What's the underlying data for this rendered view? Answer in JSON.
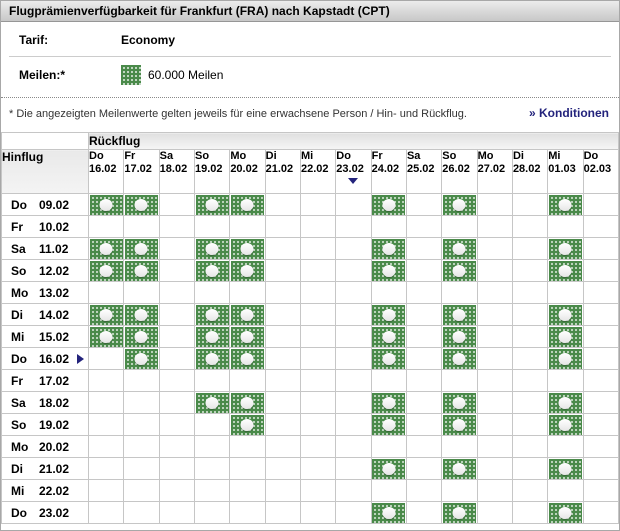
{
  "title": "Flugprämienverfügbarkeit für Frankfurt (FRA) nach Kapstadt (CPT)",
  "tarif": {
    "label": "Tarif:",
    "value": "Economy"
  },
  "meilen": {
    "label": "Meilen:*",
    "value": "60.000 Meilen"
  },
  "footnote": "* Die angezeigten Meilenwerte gelten jeweils für eine erwachsene Person / Hin- und Rückflug.",
  "konditionen_link": "» Konditionen",
  "calendar": {
    "return_header": "Rückflug",
    "outbound_header": "Hinflug",
    "columns": [
      {
        "day": "Do",
        "date": "16.02"
      },
      {
        "day": "Fr",
        "date": "17.02"
      },
      {
        "day": "Sa",
        "date": "18.02"
      },
      {
        "day": "So",
        "date": "19.02"
      },
      {
        "day": "Mo",
        "date": "20.02"
      },
      {
        "day": "Di",
        "date": "21.02"
      },
      {
        "day": "Mi",
        "date": "22.02"
      },
      {
        "day": "Do",
        "date": "23.02",
        "selected": true
      },
      {
        "day": "Fr",
        "date": "24.02"
      },
      {
        "day": "Sa",
        "date": "25.02"
      },
      {
        "day": "So",
        "date": "26.02"
      },
      {
        "day": "Mo",
        "date": "27.02"
      },
      {
        "day": "Di",
        "date": "28.02"
      },
      {
        "day": "Mi",
        "date": "01.03"
      },
      {
        "day": "Do",
        "date": "02.03"
      }
    ],
    "rows": [
      {
        "day": "Do",
        "date": "09.02",
        "availability": [
          1,
          1,
          0,
          1,
          1,
          0,
          0,
          0,
          1,
          0,
          1,
          0,
          0,
          1,
          0
        ]
      },
      {
        "day": "Fr",
        "date": "10.02",
        "availability": [
          0,
          0,
          0,
          0,
          0,
          0,
          0,
          0,
          0,
          0,
          0,
          0,
          0,
          0,
          0
        ]
      },
      {
        "day": "Sa",
        "date": "11.02",
        "availability": [
          1,
          1,
          0,
          1,
          1,
          0,
          0,
          0,
          1,
          0,
          1,
          0,
          0,
          1,
          0
        ]
      },
      {
        "day": "So",
        "date": "12.02",
        "availability": [
          1,
          1,
          0,
          1,
          1,
          0,
          0,
          0,
          1,
          0,
          1,
          0,
          0,
          1,
          0
        ]
      },
      {
        "day": "Mo",
        "date": "13.02",
        "availability": [
          0,
          0,
          0,
          0,
          0,
          0,
          0,
          0,
          0,
          0,
          0,
          0,
          0,
          0,
          0
        ]
      },
      {
        "day": "Di",
        "date": "14.02",
        "availability": [
          1,
          1,
          0,
          1,
          1,
          0,
          0,
          0,
          1,
          0,
          1,
          0,
          0,
          1,
          0
        ]
      },
      {
        "day": "Mi",
        "date": "15.02",
        "availability": [
          1,
          1,
          0,
          1,
          1,
          0,
          0,
          0,
          1,
          0,
          1,
          0,
          0,
          1,
          0
        ]
      },
      {
        "day": "Do",
        "date": "16.02",
        "selected": true,
        "availability": [
          0,
          1,
          0,
          1,
          1,
          0,
          0,
          0,
          1,
          0,
          1,
          0,
          0,
          1,
          0
        ]
      },
      {
        "day": "Fr",
        "date": "17.02",
        "availability": [
          0,
          0,
          0,
          0,
          0,
          0,
          0,
          0,
          0,
          0,
          0,
          0,
          0,
          0,
          0
        ]
      },
      {
        "day": "Sa",
        "date": "18.02",
        "availability": [
          0,
          0,
          0,
          1,
          1,
          0,
          0,
          0,
          1,
          0,
          1,
          0,
          0,
          1,
          0
        ]
      },
      {
        "day": "So",
        "date": "19.02",
        "availability": [
          0,
          0,
          0,
          0,
          1,
          0,
          0,
          0,
          1,
          0,
          1,
          0,
          0,
          1,
          0
        ]
      },
      {
        "day": "Mo",
        "date": "20.02",
        "availability": [
          0,
          0,
          0,
          0,
          0,
          0,
          0,
          0,
          0,
          0,
          0,
          0,
          0,
          0,
          0
        ]
      },
      {
        "day": "Di",
        "date": "21.02",
        "availability": [
          0,
          0,
          0,
          0,
          0,
          0,
          0,
          0,
          1,
          0,
          1,
          0,
          0,
          1,
          0
        ]
      },
      {
        "day": "Mi",
        "date": "22.02",
        "availability": [
          0,
          0,
          0,
          0,
          0,
          0,
          0,
          0,
          0,
          0,
          0,
          0,
          0,
          0,
          0
        ]
      },
      {
        "day": "Do",
        "date": "23.02",
        "availability": [
          0,
          0,
          0,
          0,
          0,
          0,
          0,
          0,
          1,
          0,
          1,
          0,
          0,
          1,
          0
        ]
      }
    ]
  },
  "colors": {
    "accent_navy": "#23237c",
    "award_green": "#4a8a4a"
  },
  "icons": {
    "award_available": "green-dotted-award-icon",
    "miles_legend": "green-dotted-square-icon",
    "selected_column_marker": "triangle-down-icon",
    "selected_row_marker": "triangle-right-icon"
  }
}
